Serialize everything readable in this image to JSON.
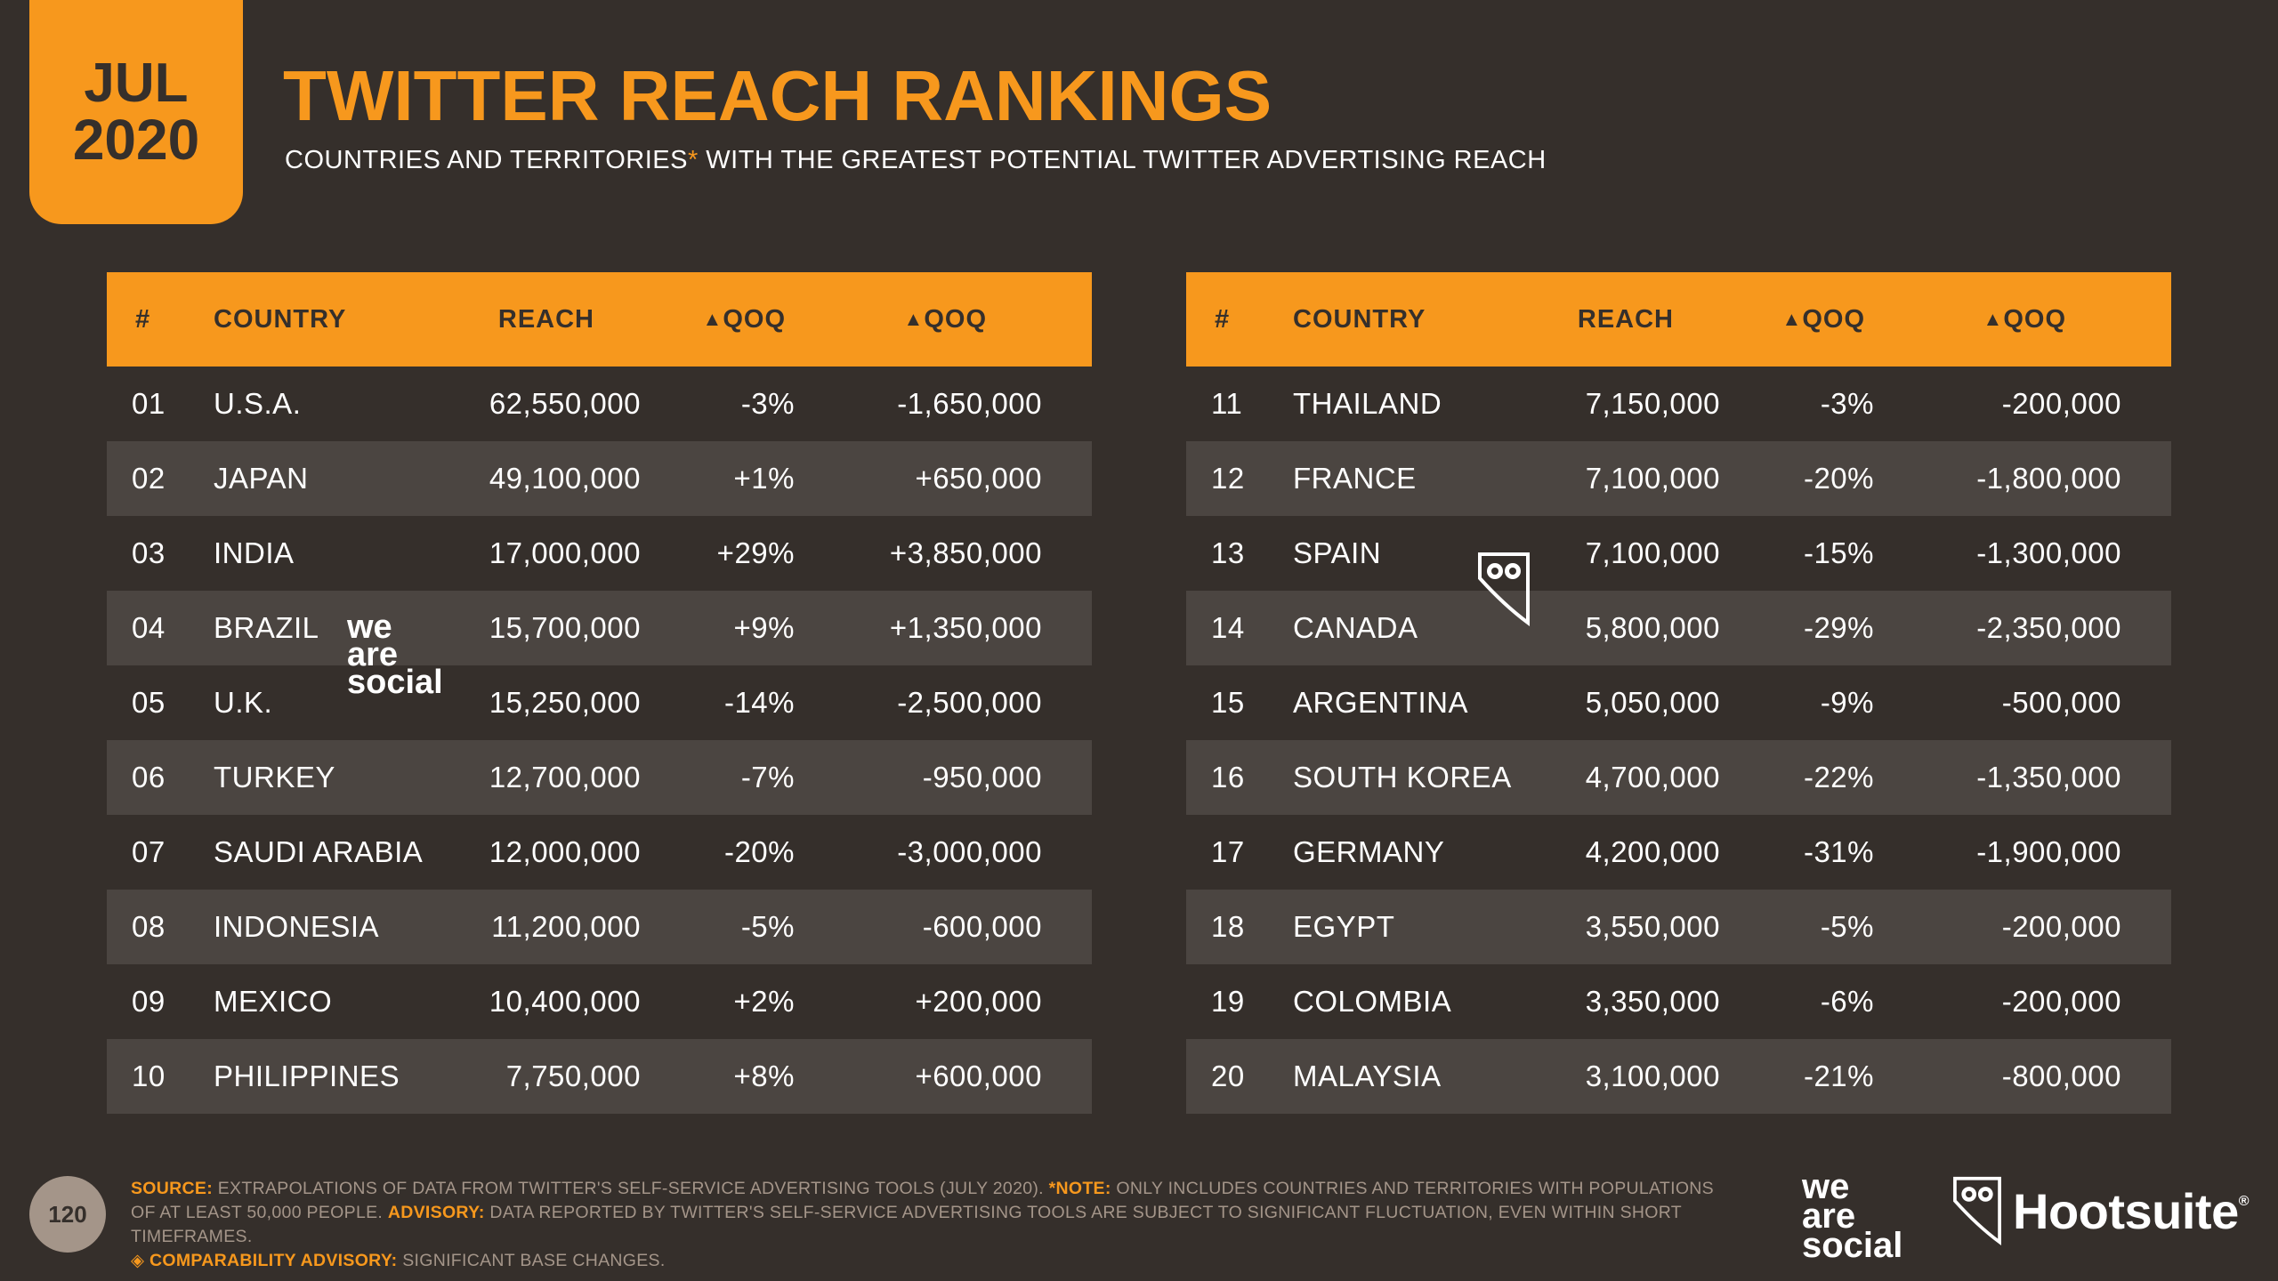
{
  "badge": {
    "month": "JUL",
    "year": "2020"
  },
  "title": "TWITTER REACH RANKINGS",
  "subtitle": {
    "before": "COUNTRIES AND TERRITORIES",
    "star": "*",
    "after": " WITH THE GREATEST POTENTIAL TWITTER ADVERTISING REACH"
  },
  "headers": {
    "num": "#",
    "country": "COUNTRY",
    "reach": "REACH",
    "qoq_pct": "QOQ",
    "qoq_abs": "QOQ",
    "delta_symbol": "▲"
  },
  "left_rows": [
    {
      "num": "01",
      "country": "U.S.A.",
      "reach": "62,550,000",
      "pct": "-3%",
      "abs": "-1,650,000"
    },
    {
      "num": "02",
      "country": "JAPAN",
      "reach": "49,100,000",
      "pct": "+1%",
      "abs": "+650,000"
    },
    {
      "num": "03",
      "country": "INDIA",
      "reach": "17,000,000",
      "pct": "+29%",
      "abs": "+3,850,000"
    },
    {
      "num": "04",
      "country": "BRAZIL",
      "reach": "15,700,000",
      "pct": "+9%",
      "abs": "+1,350,000"
    },
    {
      "num": "05",
      "country": "U.K.",
      "reach": "15,250,000",
      "pct": "-14%",
      "abs": "-2,500,000"
    },
    {
      "num": "06",
      "country": "TURKEY",
      "reach": "12,700,000",
      "pct": "-7%",
      "abs": "-950,000"
    },
    {
      "num": "07",
      "country": "SAUDI ARABIA",
      "reach": "12,000,000",
      "pct": "-20%",
      "abs": "-3,000,000"
    },
    {
      "num": "08",
      "country": "INDONESIA",
      "reach": "11,200,000",
      "pct": "-5%",
      "abs": "-600,000"
    },
    {
      "num": "09",
      "country": "MEXICO",
      "reach": "10,400,000",
      "pct": "+2%",
      "abs": "+200,000"
    },
    {
      "num": "10",
      "country": "PHILIPPINES",
      "reach": "7,750,000",
      "pct": "+8%",
      "abs": "+600,000"
    }
  ],
  "right_rows": [
    {
      "num": "11",
      "country": "THAILAND",
      "reach": "7,150,000",
      "pct": "-3%",
      "abs": "-200,000"
    },
    {
      "num": "12",
      "country": "FRANCE",
      "reach": "7,100,000",
      "pct": "-20%",
      "abs": "-1,800,000"
    },
    {
      "num": "13",
      "country": "SPAIN",
      "reach": "7,100,000",
      "pct": "-15%",
      "abs": "-1,300,000"
    },
    {
      "num": "14",
      "country": "CANADA",
      "reach": "5,800,000",
      "pct": "-29%",
      "abs": "-2,350,000"
    },
    {
      "num": "15",
      "country": "ARGENTINA",
      "reach": "5,050,000",
      "pct": "-9%",
      "abs": "-500,000"
    },
    {
      "num": "16",
      "country": "SOUTH KOREA",
      "reach": "4,700,000",
      "pct": "-22%",
      "abs": "-1,350,000"
    },
    {
      "num": "17",
      "country": "GERMANY",
      "reach": "4,200,000",
      "pct": "-31%",
      "abs": "-1,900,000"
    },
    {
      "num": "18",
      "country": "EGYPT",
      "reach": "3,550,000",
      "pct": "-5%",
      "abs": "-200,000"
    },
    {
      "num": "19",
      "country": "COLOMBIA",
      "reach": "3,350,000",
      "pct": "-6%",
      "abs": "-200,000"
    },
    {
      "num": "20",
      "country": "MALAYSIA",
      "reach": "3,100,000",
      "pct": "-21%",
      "abs": "-800,000"
    }
  ],
  "footer": {
    "source_label": "SOURCE:",
    "source_text": " EXTRAPOLATIONS OF DATA FROM TWITTER'S SELF-SERVICE ADVERTISING TOOLS (JULY 2020). ",
    "note_label": "*NOTE:",
    "note_text": " ONLY INCLUDES COUNTRIES AND TERRITORIES WITH POPULATIONS OF AT LEAST 50,000 PEOPLE. ",
    "advisory_label": "ADVISORY:",
    "advisory_text": " DATA REPORTED BY TWITTER'S SELF-SERVICE ADVERTISING TOOLS ARE SUBJECT TO SIGNIFICANT FLUCTUATION, EVEN WITHIN SHORT TIMEFRAMES.",
    "comparability_label": "◈ COMPARABILITY ADVISORY:",
    "comparability_text": " SIGNIFICANT BASE CHANGES."
  },
  "page_number": "120",
  "logos": {
    "wearesocial": [
      "we",
      "are",
      "social"
    ],
    "hootsuite": "Hootsuite",
    "registered": "®"
  },
  "icons": {
    "owl": "owl-icon"
  },
  "colors": {
    "accent": "#f7981d",
    "background": "#352f2b",
    "row_shade": "#4b4541",
    "muted": "#a49589"
  }
}
